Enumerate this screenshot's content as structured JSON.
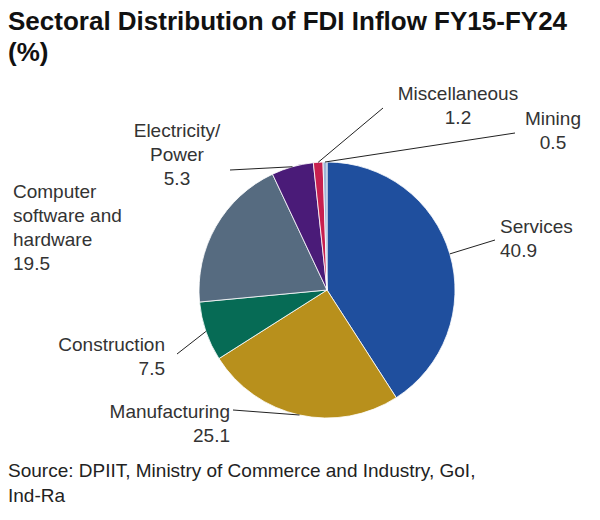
{
  "chart_data": {
    "type": "pie",
    "title": "Sectoral Distribution of FDI Inflow FY15-FY24 (%)",
    "categories": [
      "Services",
      "Manufacturing",
      "Construction",
      "Computer software and hardware",
      "Electricity/Power",
      "Miscellaneous",
      "Mining"
    ],
    "values": [
      40.9,
      25.1,
      7.5,
      19.5,
      5.3,
      1.2,
      0.5
    ],
    "colors": [
      "#1f4f9e",
      "#b8901c",
      "#066b55",
      "#566b80",
      "#4a1b78",
      "#c8204f",
      "#9fb6d6"
    ],
    "data_labels": true,
    "source": "Source: DPIIT, Ministry of Commerce and Industry, GoI, Ind-Ra"
  }
}
